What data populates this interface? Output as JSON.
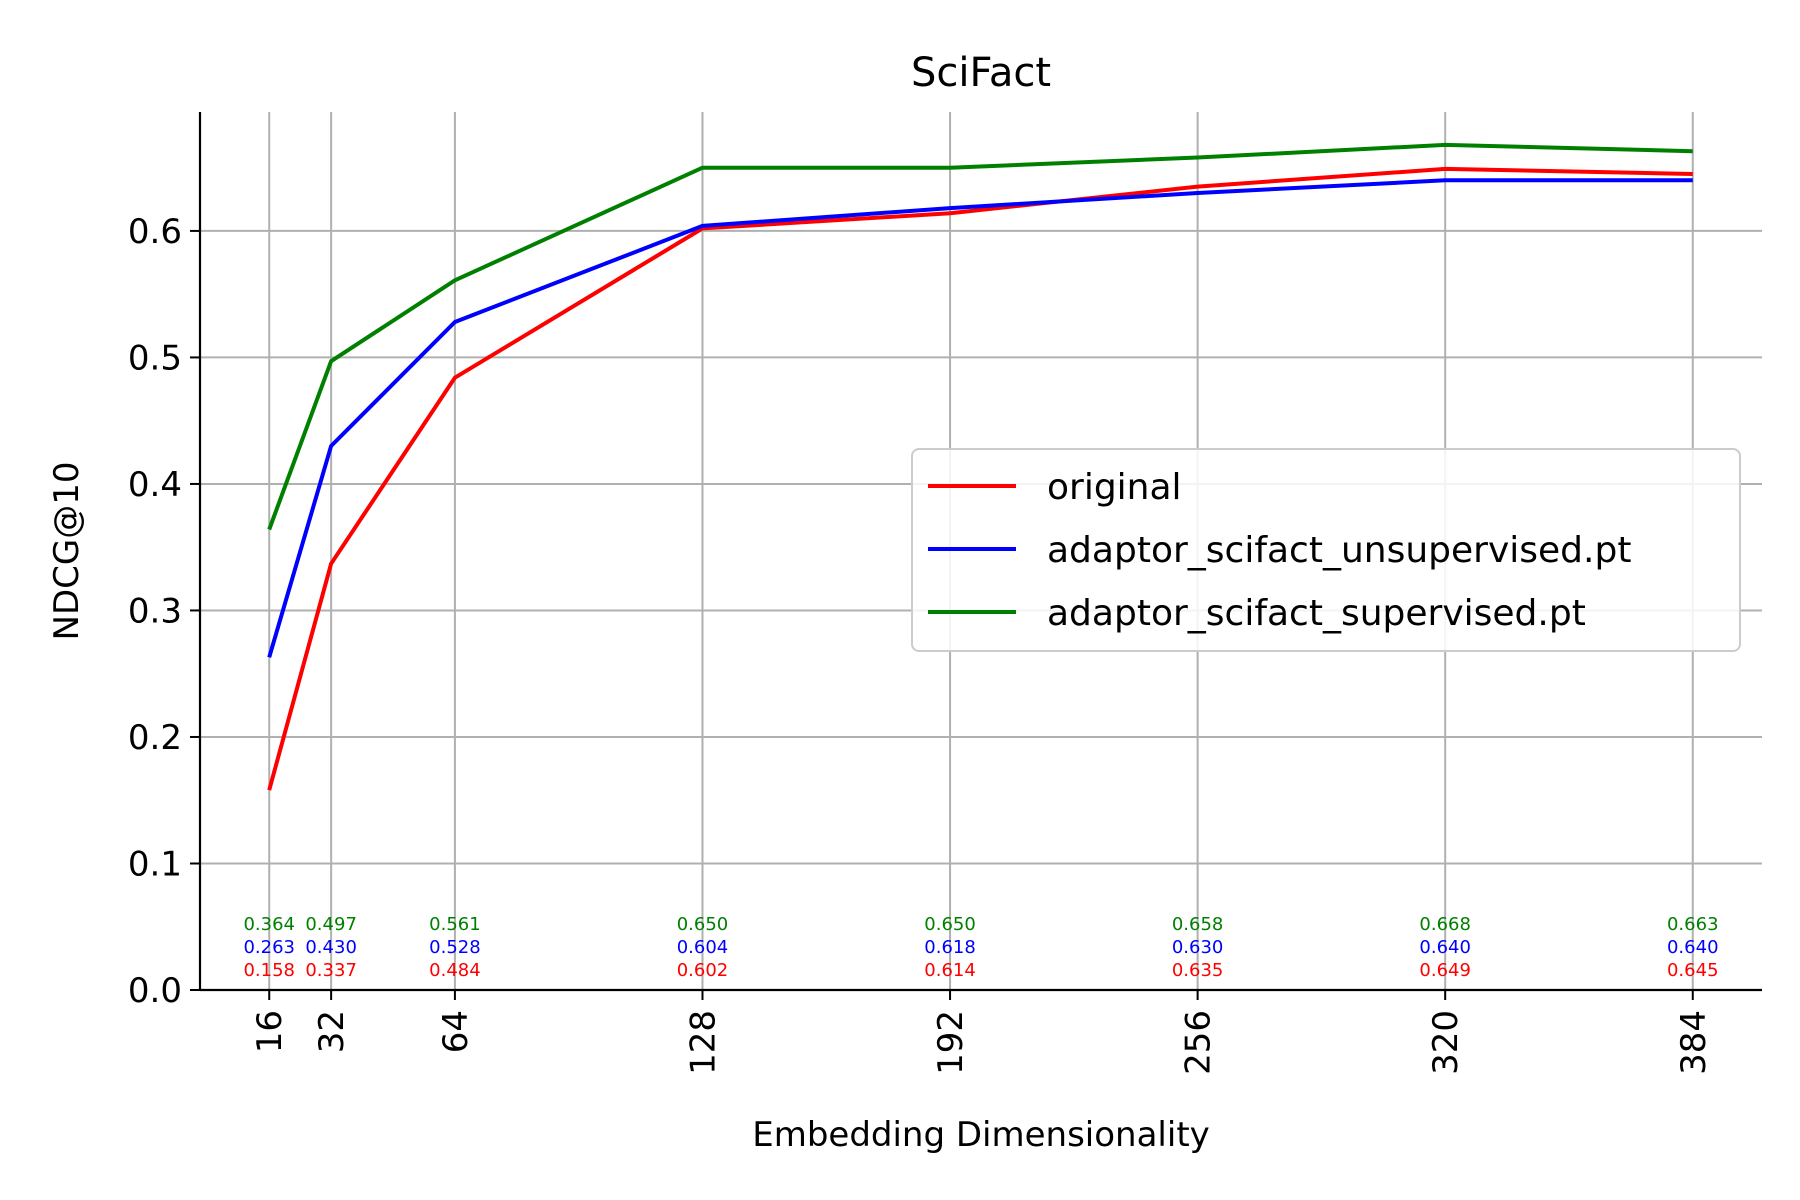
{
  "chart_data": {
    "type": "line",
    "title": "SciFact",
    "xlabel": "Embedding Dimensionality",
    "ylabel": "NDCG@10",
    "x": [
      16,
      32,
      64,
      128,
      192,
      256,
      320,
      384
    ],
    "x_tick_labels": [
      "16",
      "32",
      "64",
      "128",
      "192",
      "256",
      "320",
      "384"
    ],
    "y_tick_labels": [
      "0.0",
      "0.1",
      "0.2",
      "0.3",
      "0.4",
      "0.5",
      "0.6"
    ],
    "y_ticks": [
      0.0,
      0.1,
      0.2,
      0.3,
      0.4,
      0.5,
      0.6
    ],
    "ylim": [
      0.0,
      0.694
    ],
    "xlim": [
      -1.9,
      401.9
    ],
    "grid": true,
    "legend_position": "center-right",
    "series": [
      {
        "name": "original",
        "color": "#ff0000",
        "values": [
          0.158,
          0.337,
          0.484,
          0.602,
          0.614,
          0.635,
          0.649,
          0.645
        ],
        "labels": [
          "0.158",
          "0.337",
          "0.484",
          "0.602",
          "0.614",
          "0.635",
          "0.649",
          "0.645"
        ]
      },
      {
        "name": "adaptor_scifact_unsupervised.pt",
        "color": "#0000ff",
        "values": [
          0.263,
          0.43,
          0.528,
          0.604,
          0.618,
          0.63,
          0.64,
          0.64
        ],
        "labels": [
          "0.263",
          "0.430",
          "0.528",
          "0.604",
          "0.618",
          "0.630",
          "0.640",
          "0.640"
        ]
      },
      {
        "name": "adaptor_scifact_supervised.pt",
        "color": "#008000",
        "values": [
          0.364,
          0.497,
          0.561,
          0.65,
          0.65,
          0.658,
          0.668,
          0.663
        ],
        "labels": [
          "0.364",
          "0.497",
          "0.561",
          "0.650",
          "0.650",
          "0.658",
          "0.668",
          "0.663"
        ]
      }
    ],
    "data_label_y": [
      0.016,
      0.034,
      0.052
    ]
  }
}
